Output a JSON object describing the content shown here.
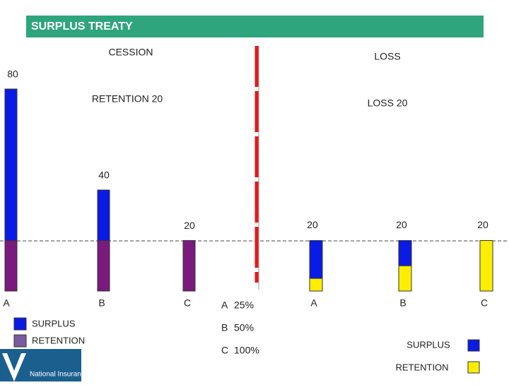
{
  "header": {
    "title": "SURPLUS TREATY"
  },
  "left": {
    "heading": "CESSION",
    "retention_label": "RETENTION 20",
    "retention": 20,
    "bars": [
      {
        "label": "A",
        "value": 80
      },
      {
        "label": "B",
        "value": 40
      },
      {
        "label": "C",
        "value": 20
      }
    ],
    "legend": [
      "SURPLUS",
      "RETENTION"
    ]
  },
  "right": {
    "heading": "LOSS",
    "loss_label": "LOSS 20",
    "loss": 20,
    "shares": [
      {
        "label": "A",
        "value": 25,
        "value_label": "25%"
      },
      {
        "label": "B",
        "value": 50,
        "value_label": "50%"
      },
      {
        "label": "C",
        "value": 100,
        "value_label": "100%"
      }
    ],
    "bars": [
      {
        "label": "A",
        "value": 20
      },
      {
        "label": "B",
        "value": 20
      },
      {
        "label": "C",
        "value": 20
      }
    ],
    "legend": [
      "SURPLUS",
      "RETENTION"
    ]
  },
  "logo": {
    "text": "National Insurance"
  }
}
